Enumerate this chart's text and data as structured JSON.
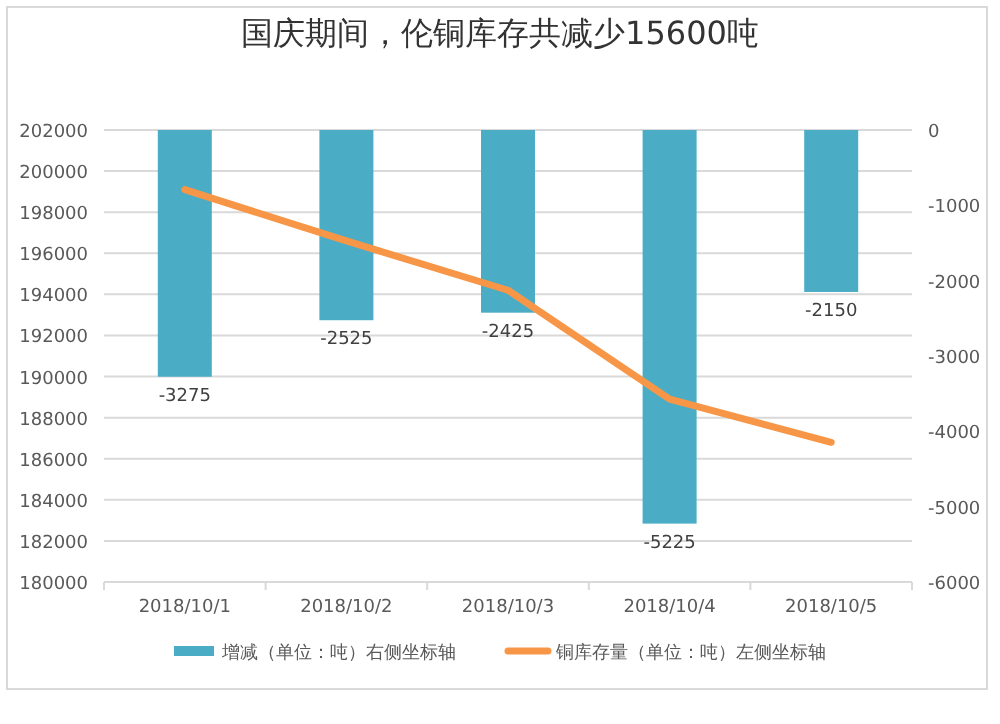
{
  "chart_data": {
    "type": "bar",
    "title": "国庆期间，伦铜库存共减少15600吨",
    "categories": [
      "2018/10/1",
      "2018/10/2",
      "2018/10/3",
      "2018/10/4",
      "2018/10/5"
    ],
    "series": [
      {
        "name": "增减（单位：吨）右侧坐标轴",
        "axis": "y2",
        "color": "#4bacc6",
        "values": [
          -3275,
          -2525,
          -2425,
          -5225,
          -2150
        ],
        "value_labels": [
          "-3275",
          "-2525",
          "-2425",
          "-5225",
          "-2150"
        ]
      },
      {
        "name": "铜库存量（单位：吨）左侧坐标轴",
        "type": "line",
        "color": "#f79646",
        "values": [
          199100,
          196600,
          194200,
          188900,
          186800
        ]
      }
    ],
    "ylim": [
      180000,
      202000
    ],
    "yticks": [
      180000,
      182000,
      184000,
      186000,
      188000,
      190000,
      192000,
      194000,
      196000,
      198000,
      200000,
      202000
    ],
    "y2lim": [
      -6000,
      0
    ],
    "y2ticks": [
      -6000,
      -5000,
      -4000,
      -3000,
      -2000,
      -1000,
      0
    ],
    "grid": "y",
    "legend": "bottom",
    "marker": "none"
  }
}
